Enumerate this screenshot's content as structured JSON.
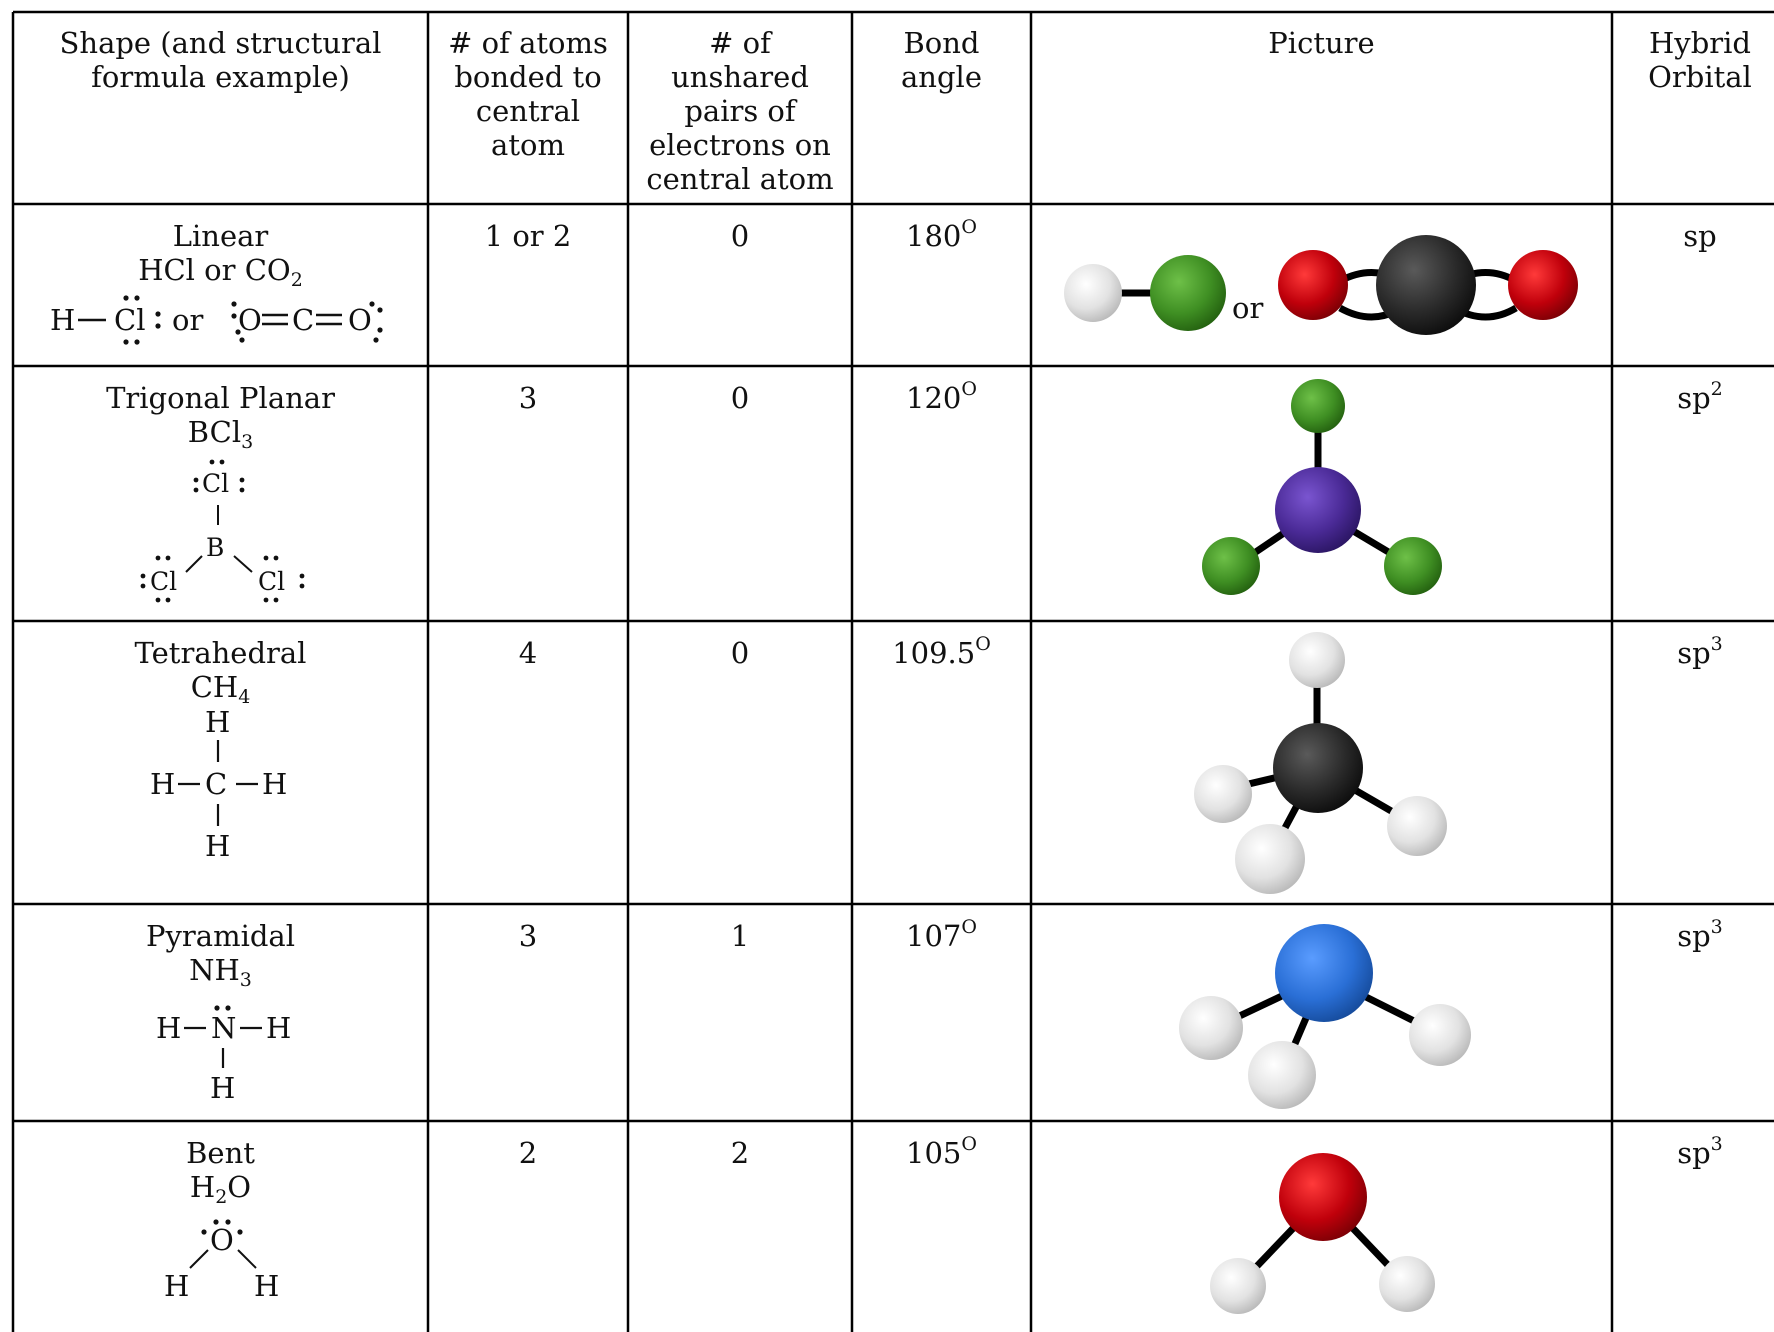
{
  "headers": [
    "Shape (and structural formula example)",
    "# of atoms bonded to central atom",
    "# of unshared pairs of electrons on central atom",
    "Bond angle",
    "Picture",
    "Hybrid Orbital"
  ],
  "header_lines": {
    "shape": [
      "Shape (and structural",
      "formula example)"
    ],
    "atoms": [
      "# of atoms",
      "bonded to",
      "central",
      "atom"
    ],
    "pairs": [
      "# of",
      "unshared",
      "pairs of",
      "electrons on",
      "central atom"
    ],
    "angle": [
      "Bond",
      "angle"
    ],
    "picture": [
      "Picture"
    ],
    "hybrid": [
      "Hybrid",
      "Orbital"
    ]
  },
  "rows": [
    {
      "shape": "Linear",
      "formula": "HCl or CO",
      "formula_sub": "2",
      "formula_tail": "",
      "atoms": "1 or 2",
      "pairs": "0",
      "angle": "180",
      "angle_sup": "O",
      "hybrid": "sp",
      "hybrid_sup": "",
      "picture_or": "or",
      "lewis": {
        "h": "H",
        "cl": "Cl",
        "or": "or",
        "o1": "O",
        "c": "C",
        "o2": "O"
      }
    },
    {
      "shape": "Trigonal Planar",
      "formula": "BCl",
      "formula_sub": "3",
      "formula_tail": "",
      "atoms": "3",
      "pairs": "0",
      "angle": "120",
      "angle_sup": "O",
      "hybrid": "sp",
      "hybrid_sup": "2",
      "lewis": {
        "cl_top": "Cl",
        "b": "B",
        "cl_left": "Cl",
        "cl_right": "Cl"
      }
    },
    {
      "shape": "Tetrahedral",
      "formula": "CH",
      "formula_sub": "4",
      "formula_tail": "",
      "atoms": "4",
      "pairs": "0",
      "angle": "109.5",
      "angle_sup": "O",
      "hybrid": "sp",
      "hybrid_sup": "3",
      "lewis": {
        "h_top": "H",
        "h_left": "H",
        "c": "C",
        "h_right": "H",
        "h_bottom": "H"
      }
    },
    {
      "shape": "Pyramidal",
      "formula": "NH",
      "formula_sub": "3",
      "formula_tail": "",
      "atoms": "3",
      "pairs": "1",
      "angle": "107",
      "angle_sup": "O",
      "hybrid": "sp",
      "hybrid_sup": "3",
      "lewis": {
        "h_left": "H",
        "n": "N",
        "h_right": "H",
        "h_bottom": "H"
      }
    },
    {
      "shape": "Bent",
      "formula": "H",
      "formula_sub": "2",
      "formula_tail": "O",
      "atoms": "2",
      "pairs": "2",
      "angle": "105",
      "angle_sup": "O",
      "hybrid": "sp",
      "hybrid_sup": "3",
      "lewis": {
        "o": "O",
        "h_left": "H",
        "h_right": "H"
      }
    }
  ],
  "colors": {
    "hydrogen": "#e4e4e4",
    "chlorine": "#3f8f23",
    "oxygen": "#c0000b",
    "carbon": "#2a2a2a",
    "boron": "#4a2a96",
    "nitrogen": "#2a6fd6",
    "bond": "#000000",
    "grid": "#000000"
  }
}
